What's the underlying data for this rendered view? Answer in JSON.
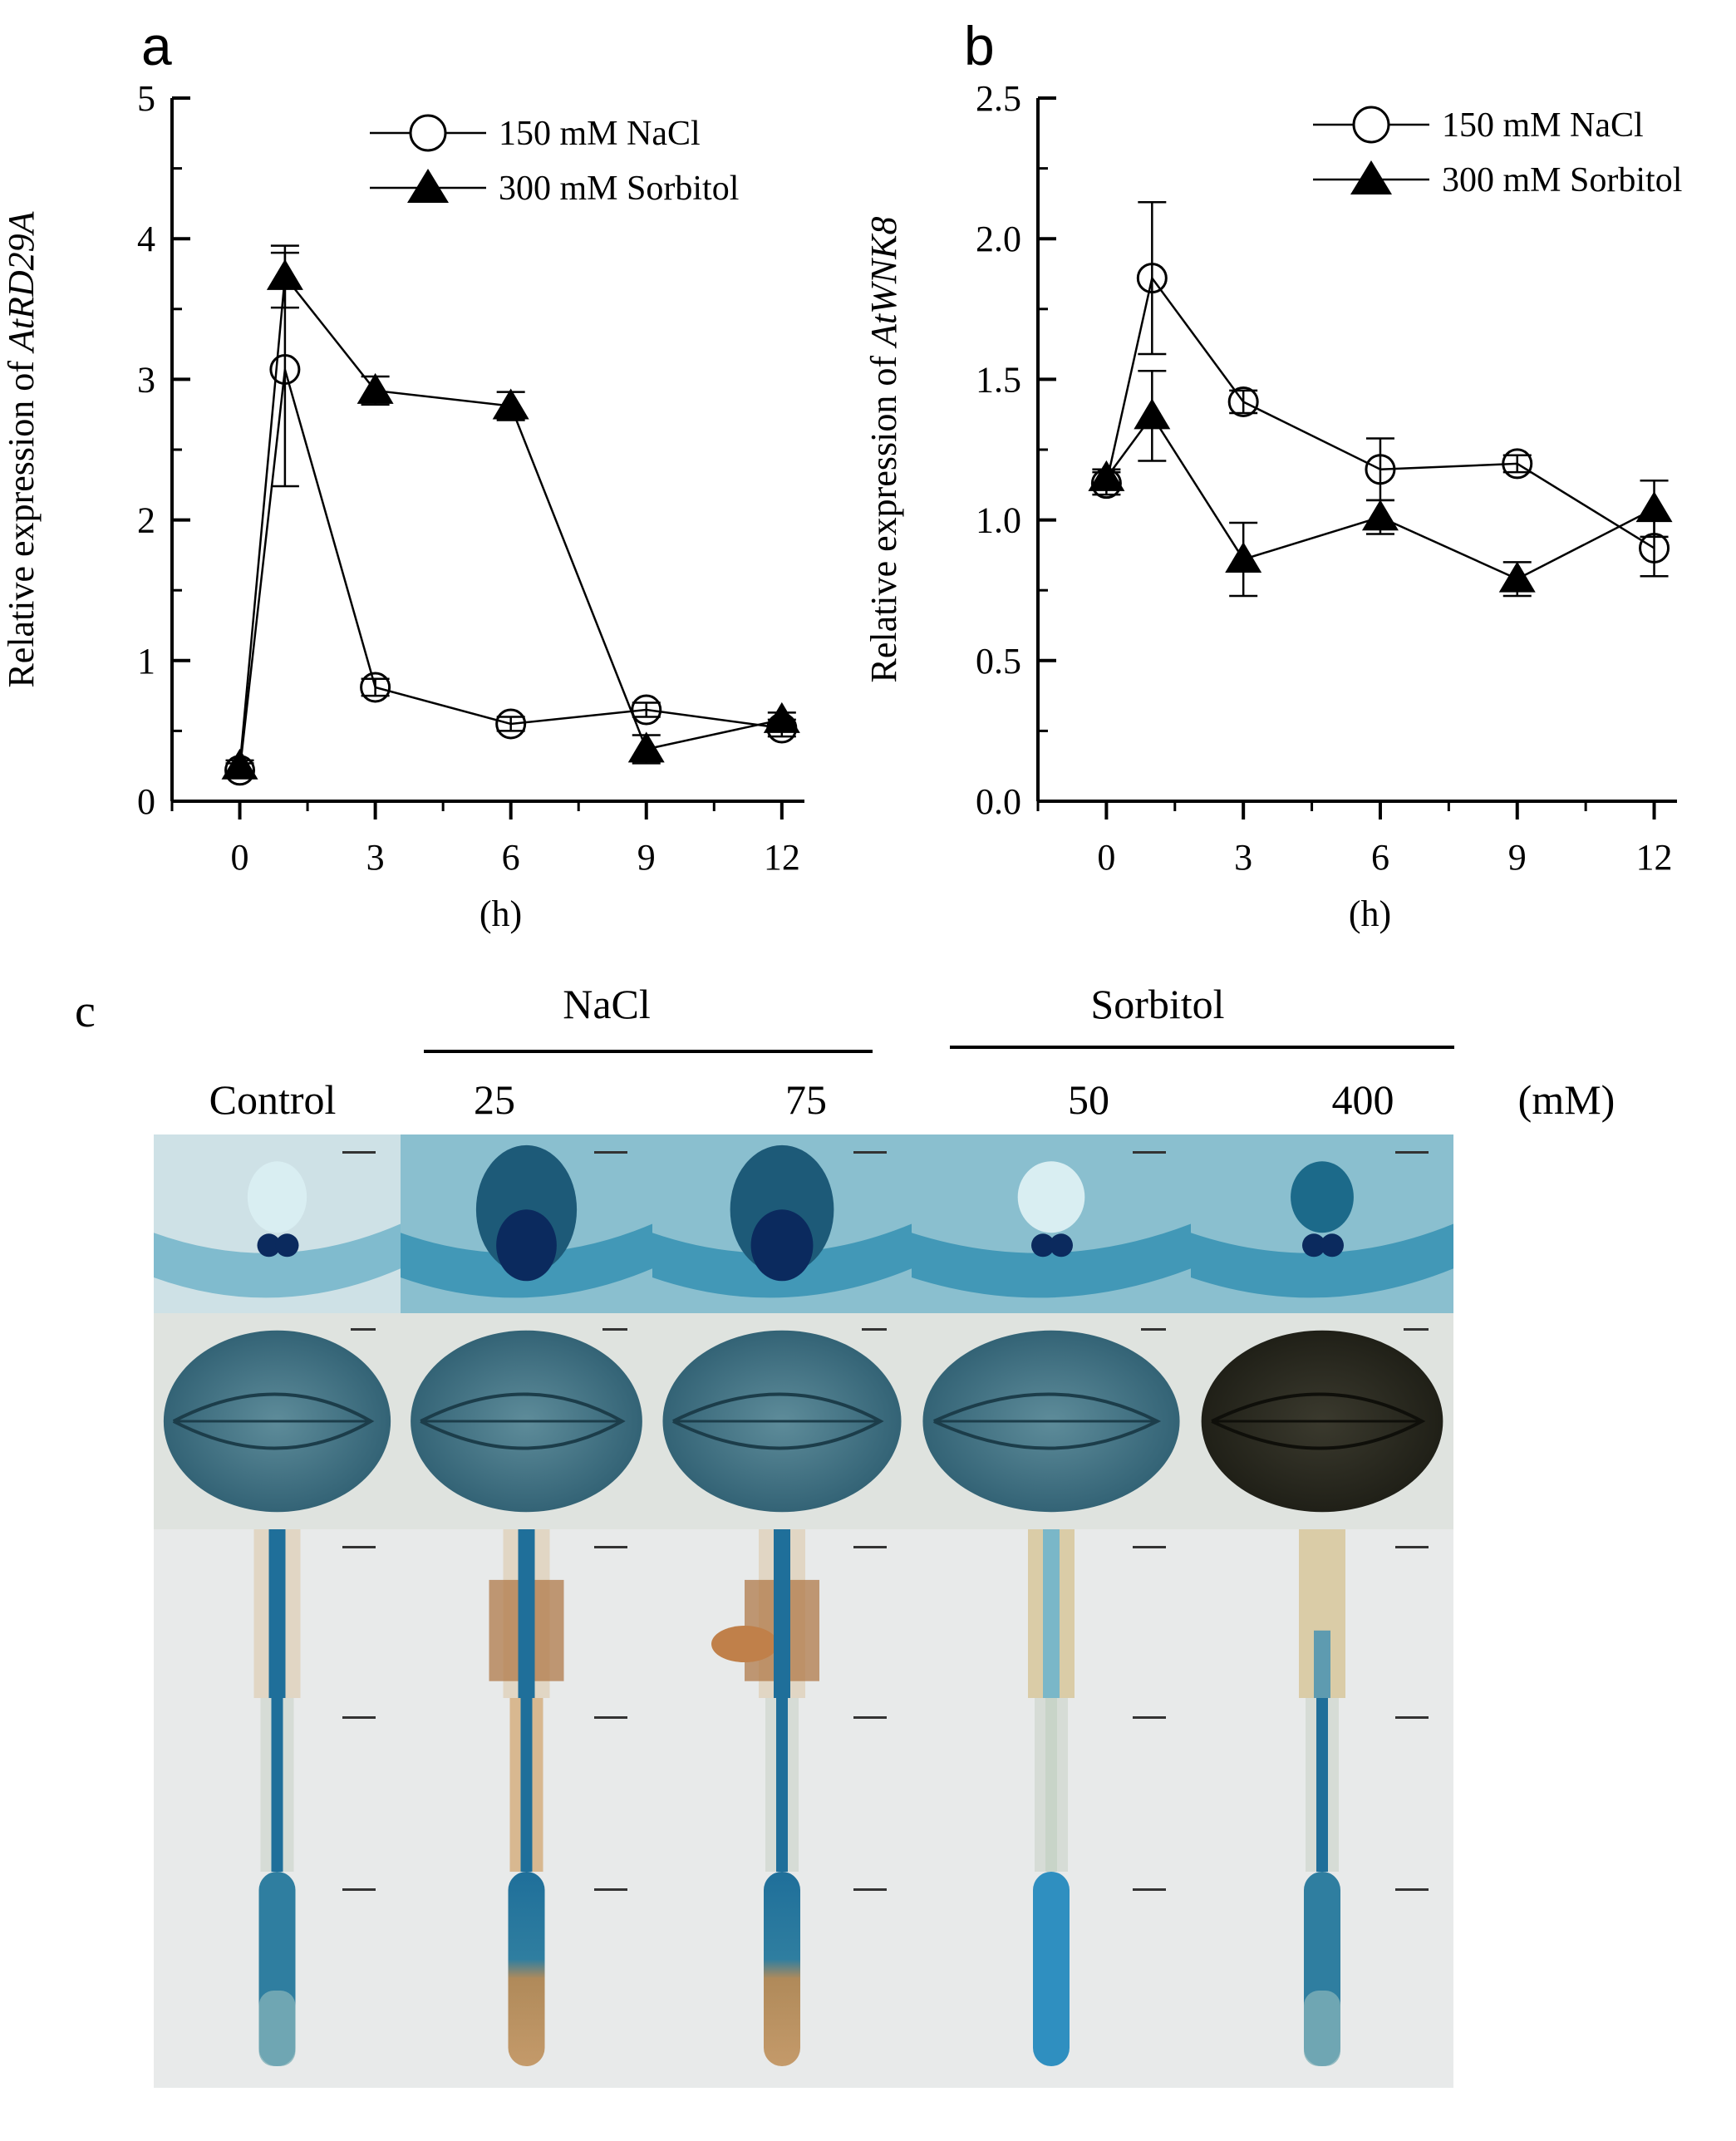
{
  "chart_data": [
    {
      "type": "line",
      "panel": "a",
      "title": "",
      "xlabel": "(h)",
      "ylabel_prefix": "Relative expression of ",
      "ylabel_gene": "AtRD29A",
      "x_ticks": [
        0,
        3,
        6,
        9,
        12
      ],
      "x_tick_labels": [
        "0",
        "3",
        "6",
        "9",
        "12"
      ],
      "y_ticks": [
        0,
        1,
        2,
        3,
        4,
        5
      ],
      "y_tick_labels": [
        "0",
        "1",
        "2",
        "3",
        "4",
        "5"
      ],
      "xlim": [
        -1.5,
        12.5
      ],
      "ylim": [
        0,
        5
      ],
      "legend_position": "top-right",
      "series": [
        {
          "name": "150 mM NaCl",
          "marker": "open-circle",
          "x": [
            0,
            1,
            3,
            6,
            9,
            12
          ],
          "y": [
            0.22,
            3.07,
            0.81,
            0.55,
            0.65,
            0.52
          ],
          "err": [
            0.05,
            0.83,
            0.06,
            0.05,
            0.05,
            0.06
          ]
        },
        {
          "name": "300 mM Sorbitol",
          "marker": "filled-triangle",
          "x": [
            0,
            1,
            3,
            6,
            9,
            12
          ],
          "y": [
            0.25,
            3.73,
            2.92,
            2.81,
            0.37,
            0.58
          ],
          "err": [
            0.04,
            0.22,
            0.1,
            0.1,
            0.1,
            0.05
          ]
        }
      ]
    },
    {
      "type": "line",
      "panel": "b",
      "title": "",
      "xlabel": "(h)",
      "ylabel_prefix": "Relative expression of ",
      "ylabel_gene": "AtWNK8",
      "x_ticks": [
        0,
        3,
        6,
        9,
        12
      ],
      "x_tick_labels": [
        "0",
        "3",
        "6",
        "9",
        "12"
      ],
      "y_ticks": [
        0,
        0.5,
        1,
        1.5,
        2,
        2.5
      ],
      "y_tick_labels": [
        "0.0",
        "0.5",
        "1.0",
        "1.5",
        "2.0",
        "2.5"
      ],
      "xlim": [
        -1.5,
        12.5
      ],
      "ylim": [
        0,
        2.5
      ],
      "legend_position": "top-right",
      "series": [
        {
          "name": "150 mM NaCl",
          "marker": "open-circle",
          "x": [
            0,
            1,
            3,
            6,
            9,
            12
          ],
          "y": [
            1.13,
            1.86,
            1.42,
            1.18,
            1.2,
            0.9
          ],
          "err": [
            0.04,
            0.27,
            0.04,
            0.11,
            0.03,
            0.1
          ]
        },
        {
          "name": "300 mM Sorbitol",
          "marker": "filled-triangle",
          "x": [
            0,
            1,
            3,
            6,
            9,
            12
          ],
          "y": [
            1.15,
            1.37,
            0.86,
            1.01,
            0.79,
            1.04
          ],
          "err": [
            0.03,
            0.16,
            0.13,
            0.06,
            0.06,
            0.1
          ]
        }
      ]
    }
  ],
  "figure": {
    "panel_labels": [
      "a",
      "b",
      "c"
    ],
    "panel_c": {
      "groups": [
        {
          "name": "NaCl",
          "concentrations": [
            "25",
            "75"
          ]
        },
        {
          "name": "Sorbitol",
          "concentrations": [
            "50",
            "400"
          ]
        }
      ],
      "column_labels": [
        "Control",
        "25",
        "75",
        "50",
        "400"
      ],
      "unit_label": "(mM)",
      "row_tissues": [
        "shoot-apex",
        "cotyledon",
        "hypocotyl-root-junction",
        "root-mid",
        "root-tip"
      ],
      "stain_colors": {
        "gus_blue": "#1f6f9a",
        "dark_blue": "#0b2a5e",
        "light_background": "#e8eaea",
        "brown": "#b07a4a",
        "very_dark": "#1e2a2a"
      }
    }
  }
}
